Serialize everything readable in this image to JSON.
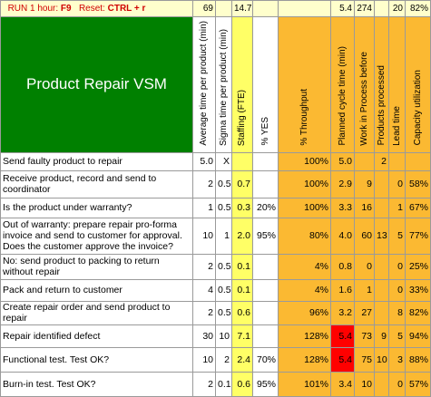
{
  "table": {
    "run_label": "RUN 1 hour:",
    "run_key": "F9",
    "reset_label": "Reset:",
    "reset_key": "CTRL + r",
    "totals": [
      "69",
      null,
      "14.7",
      null,
      null,
      "5.4",
      "274",
      null,
      "20",
      "82%"
    ],
    "title": "Product Repair VSM",
    "columns": [
      "Average time per product (min)",
      "Sigma time per product (min)",
      "Staffing (FTE)",
      "% YES",
      "% Throughput",
      "Planned cycle time (min)",
      "Work in Process before",
      "Products processed",
      "Lead time",
      "Capacity utilization"
    ],
    "rows": [
      {
        "label": "Send faulty product to repair",
        "cells": [
          "5.0",
          "X",
          null,
          null,
          "100%",
          "5.0",
          null,
          "2",
          null,
          null
        ]
      },
      {
        "label": "Receive product, record and send to coordinator",
        "cells": [
          "2",
          "0.5",
          "0.7",
          null,
          "100%",
          "2.9",
          "9",
          null,
          "0",
          "58%"
        ]
      },
      {
        "label": "Is the product under warranty?",
        "cells": [
          "1",
          "0.5",
          "0.3",
          "20%",
          "100%",
          "3.3",
          "16",
          null,
          "1",
          "67%"
        ]
      },
      {
        "label": "Out of warranty: prepare repair pro-forma invoice and send to customer for approval. Does the customer approve the invoice?",
        "cells": [
          "10",
          "1",
          "2.0",
          "95%",
          "80%",
          "4.0",
          "60",
          "13",
          "5",
          "77%"
        ]
      },
      {
        "label": "No: send product to packing to return without repair",
        "cells": [
          "2",
          "0.5",
          "0.1",
          null,
          "4%",
          "0.8",
          "0",
          null,
          "0",
          "25%"
        ]
      },
      {
        "label": "Pack and return to customer",
        "cells": [
          "4",
          "0.5",
          "0.1",
          null,
          "4%",
          "1.6",
          "1",
          null,
          "0",
          "33%"
        ]
      },
      {
        "label": "Create repair order and send product to repair",
        "cells": [
          "2",
          "0.5",
          "0.6",
          null,
          "96%",
          "3.2",
          "27",
          null,
          "8",
          "82%"
        ]
      },
      {
        "label": "Repair identified defect",
        "cells": [
          "30",
          "10",
          "7.1",
          null,
          "128%",
          "5.4",
          "73",
          "9",
          "5",
          "94%"
        ],
        "alert_cells": [
          5
        ]
      },
      {
        "label": "Functional test. Test OK?",
        "cells": [
          "10",
          "2",
          "2.4",
          "70%",
          "128%",
          "5.4",
          "75",
          "10",
          "3",
          "88%"
        ],
        "alert_cells": [
          5
        ]
      },
      {
        "label": "Burn-in test. Test OK?",
        "cells": [
          "2",
          "0.1",
          "0.6",
          "95%",
          "101%",
          "3.4",
          "10",
          null,
          "0",
          "57%"
        ]
      }
    ]
  }
}
